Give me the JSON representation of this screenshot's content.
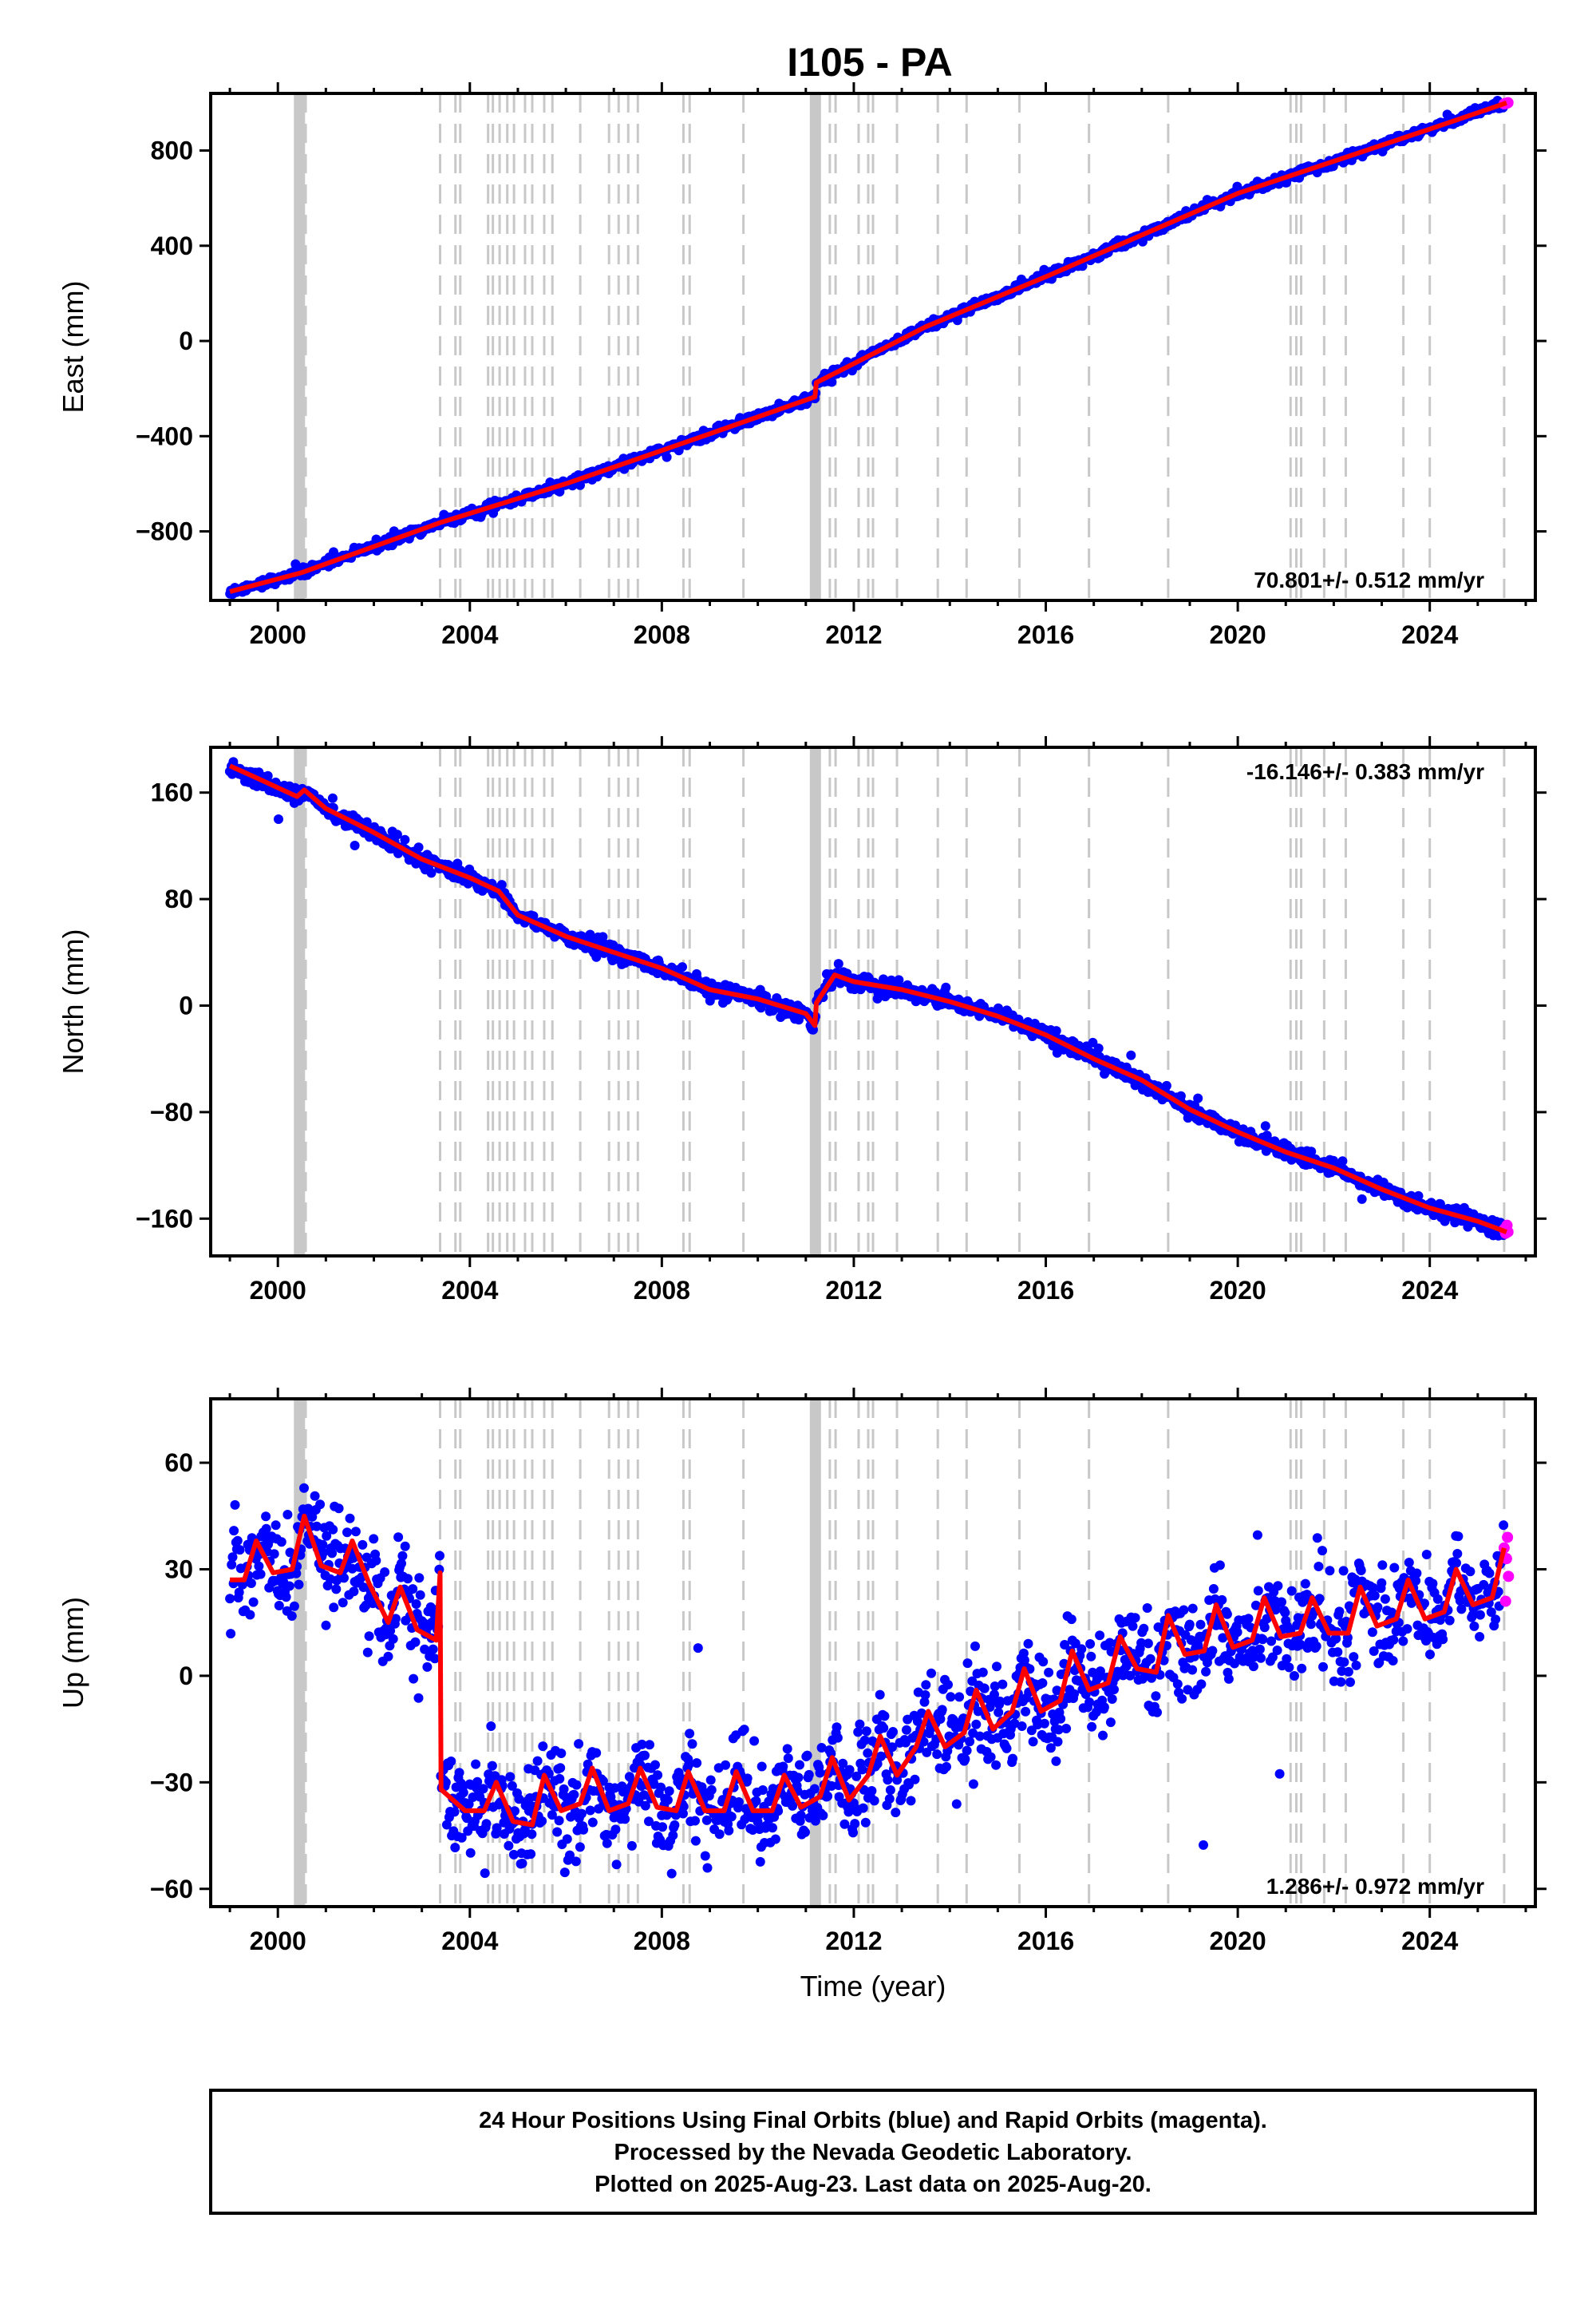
{
  "title": "I105 - PA",
  "footer": {
    "line1": "24 Hour Positions Using Final Orbits (blue) and Rapid Orbits (magenta).",
    "line2": "Processed by the Nevada Geodetic Laboratory.",
    "line3": "Plotted on 2025-Aug-23. Last data on 2025-Aug-20."
  },
  "colors": {
    "final_orbits": "#0000ff",
    "rapid_orbits": "#ff00ff",
    "model_fit": "#ff0000",
    "event_lines": "#c8c8c8"
  },
  "chart_data": [
    {
      "type": "scatter",
      "ylabel": "East (mm)",
      "xlabel": "",
      "xlim": [
        1998.6,
        2026.2
      ],
      "ylim": [
        -1090,
        1040
      ],
      "xticks": [
        2000,
        2004,
        2008,
        2012,
        2016,
        2020,
        2024
      ],
      "yticks": [
        -800,
        -400,
        0,
        400,
        800
      ],
      "ytick_labels": [
        "−800",
        "−400",
        "0",
        "400",
        "800"
      ],
      "rate_label": "70.801+/- 0.512 mm/yr",
      "rate_position": "bottom-right",
      "fit_curve": {
        "x": [
          1999.0,
          2000.5,
          2003.4,
          2006.0,
          2009.0,
          2011.19,
          2011.22,
          2012.0,
          2013.5,
          2016.0,
          2020.0,
          2024.0,
          2025.6
        ],
        "y": [
          -1053,
          -973,
          -762,
          -600,
          -390,
          -235,
          -175,
          -95,
          60,
          270,
          620,
          890,
          1000
        ]
      },
      "rapid_points": {
        "x": [
          2025.55,
          2025.58,
          2025.61,
          2025.63
        ],
        "y": [
          996,
          998,
          999,
          1001
        ]
      },
      "scatter_sd": 9
    },
    {
      "type": "scatter",
      "ylabel": "North (mm)",
      "xlabel": "",
      "xlim": [
        1998.6,
        2026.2
      ],
      "ylim": [
        -188,
        194
      ],
      "xticks": [
        2000,
        2004,
        2008,
        2012,
        2016,
        2020,
        2024
      ],
      "yticks": [
        -160,
        -80,
        0,
        80,
        160
      ],
      "ytick_labels": [
        "−160",
        "−80",
        "0",
        "80",
        "160"
      ],
      "rate_label": "-16.146+/- 0.383 mm/yr",
      "rate_position": "top-right",
      "fit_curve": {
        "x": [
          1999.0,
          1999.5,
          2000.4,
          2000.55,
          2001.0,
          2002.0,
          2003.0,
          2004.0,
          2004.6,
          2005.0,
          2006.0,
          2006.5,
          2007.0,
          2008.0,
          2009.0,
          2010.0,
          2011.0,
          2011.19,
          2011.22,
          2011.6,
          2012.0,
          2013.0,
          2014.0,
          2015.0,
          2016.0,
          2017.0,
          2018.0,
          2019.0,
          2020.0,
          2021.0,
          2022.0,
          2023.0,
          2024.0,
          2025.0,
          2025.6
        ],
        "y": [
          180,
          172,
          157,
          162,
          148,
          130,
          110,
          96,
          86,
          68,
          52,
          46,
          40,
          28,
          12,
          5,
          -6,
          -15,
          2,
          23,
          18,
          12,
          3,
          -8,
          -22,
          -40,
          -56,
          -78,
          -95,
          -110,
          -122,
          -138,
          -152,
          -162,
          -170
        ]
      },
      "rapid_points": {
        "x": [
          2025.55,
          2025.58,
          2025.61,
          2025.63
        ],
        "y": [
          -168,
          -171,
          -165,
          -170
        ]
      },
      "scatter_sd": 3
    },
    {
      "type": "scatter",
      "ylabel": "Up (mm)",
      "xlabel": "Time (year)",
      "xlim": [
        1998.6,
        2026.2
      ],
      "ylim": [
        -65,
        78
      ],
      "xticks": [
        2000,
        2004,
        2008,
        2012,
        2016,
        2020,
        2024
      ],
      "yticks": [
        -60,
        -30,
        0,
        30,
        60
      ],
      "ytick_labels": [
        "−60",
        "−30",
        "0",
        "30",
        "60"
      ],
      "rate_label": "1.286+/- 0.972 mm/yr",
      "rate_position": "bottom-right",
      "fit_curve": {
        "x": [
          1999.0,
          1999.3,
          1999.55,
          1999.9,
          2000.3,
          2000.55,
          2000.9,
          2001.3,
          2001.55,
          2001.9,
          2002.3,
          2002.55,
          2002.9,
          2003.3,
          2003.38,
          2003.4,
          2003.9,
          2004.3,
          2004.55,
          2004.9,
          2005.3,
          2005.55,
          2005.9,
          2006.3,
          2006.55,
          2006.9,
          2007.3,
          2007.55,
          2007.9,
          2008.3,
          2008.55,
          2008.9,
          2009.3,
          2009.55,
          2009.9,
          2010.3,
          2010.55,
          2010.9,
          2011.3,
          2011.55,
          2011.9,
          2012.3,
          2012.55,
          2012.9,
          2013.3,
          2013.55,
          2013.9,
          2014.3,
          2014.55,
          2014.9,
          2015.3,
          2015.55,
          2015.9,
          2016.3,
          2016.55,
          2016.9,
          2017.3,
          2017.55,
          2017.9,
          2018.3,
          2018.55,
          2018.9,
          2019.3,
          2019.55,
          2019.9,
          2020.3,
          2020.55,
          2020.9,
          2021.3,
          2021.55,
          2021.9,
          2022.3,
          2022.55,
          2022.9,
          2023.3,
          2023.55,
          2023.9,
          2024.3,
          2024.55,
          2024.9,
          2025.3,
          2025.55
        ],
        "y": [
          27,
          27,
          38,
          29,
          30,
          45,
          31,
          29,
          38,
          26,
          15,
          25,
          13,
          10,
          29,
          -32,
          -38,
          -38,
          -30,
          -41,
          -42,
          -28,
          -38,
          -36,
          -26,
          -38,
          -36,
          -26,
          -37,
          -38,
          -27,
          -38,
          -38,
          -27,
          -38,
          -38,
          -28,
          -37,
          -34,
          -23,
          -35,
          -28,
          -17,
          -28,
          -20,
          -10,
          -20,
          -16,
          -4,
          -15,
          -10,
          2,
          -10,
          -7,
          7,
          -4,
          -2,
          11,
          2,
          1,
          17,
          6,
          7,
          20,
          8,
          10,
          22,
          11,
          12,
          22,
          12,
          12,
          25,
          14,
          16,
          27,
          16,
          18,
          30,
          20,
          22,
          36
        ]
      },
      "rapid_points": {
        "x": [
          2025.55,
          2025.58,
          2025.6,
          2025.62,
          2025.64
        ],
        "y": [
          36,
          21,
          33,
          39,
          28
        ]
      },
      "scatter_sd": 7
    }
  ],
  "event_lines": {
    "solid_band_years": [
      2000.45,
      2011.2
    ],
    "dashed_years": [
      2000.48,
      2000.58,
      2003.38,
      2003.7,
      2003.8,
      2004.38,
      2004.48,
      2004.62,
      2004.78,
      2004.92,
      2005.15,
      2005.3,
      2005.55,
      2005.72,
      2006.3,
      2006.9,
      2007.1,
      2007.3,
      2007.5,
      2008.45,
      2008.58,
      2009.7,
      2011.15,
      2011.25,
      2011.5,
      2011.62,
      2012.1,
      2012.3,
      2012.4,
      2012.9,
      2013.75,
      2014.35,
      2015.45,
      2016.9,
      2018.55,
      2021.1,
      2021.22,
      2021.32,
      2021.8,
      2022.25,
      2023.45,
      2024.0,
      2025.55
    ]
  }
}
